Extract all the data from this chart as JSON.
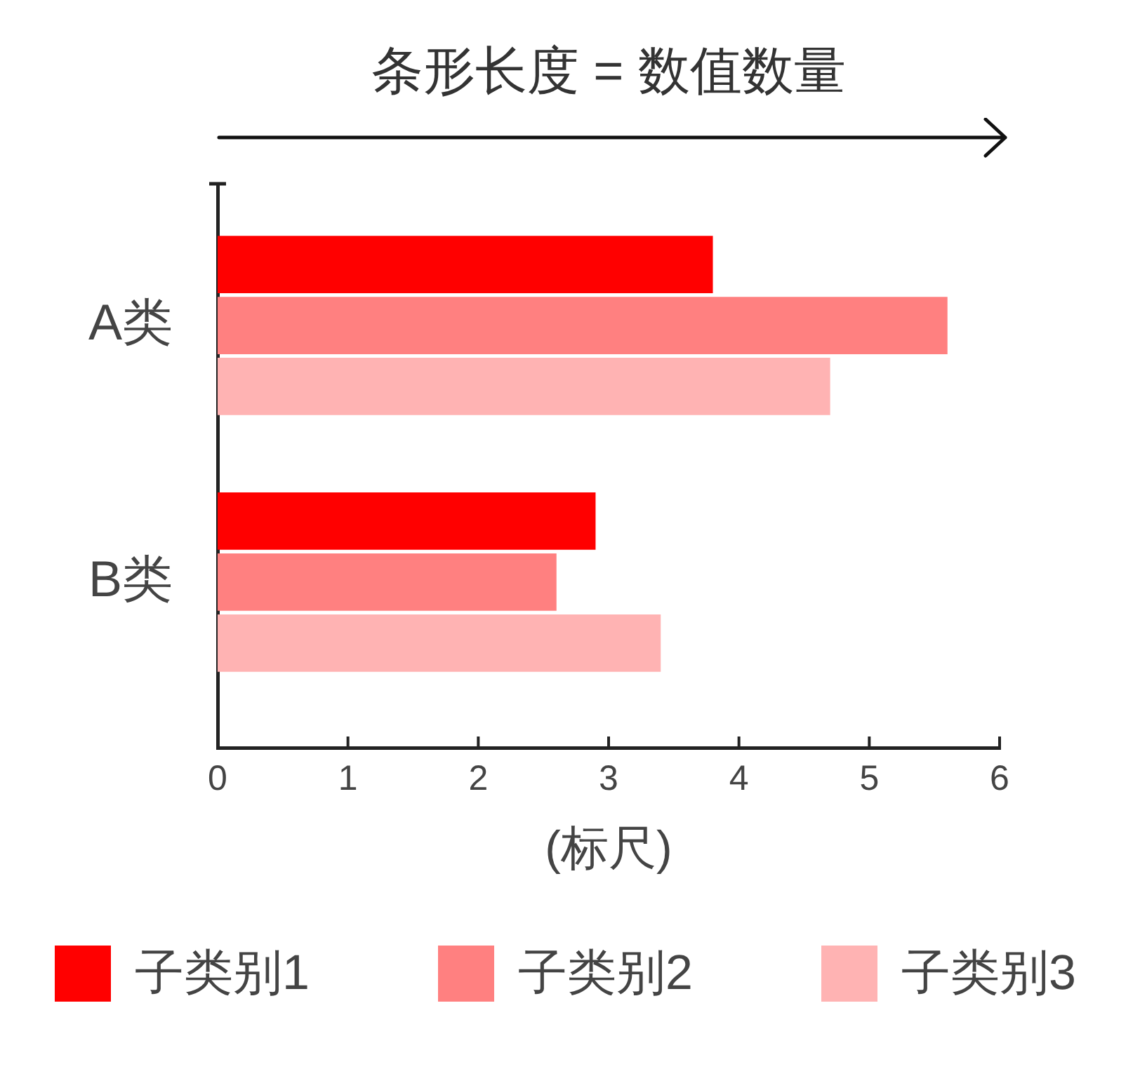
{
  "chart_data": {
    "type": "bar",
    "orientation": "horizontal",
    "title": "条形长度 = 数值数量",
    "xlabel": "(标尺)",
    "categories": [
      "A类",
      "B类"
    ],
    "series": [
      {
        "name": "子类别1",
        "color": "#ff0000",
        "values": [
          3.8,
          2.9
        ]
      },
      {
        "name": "子类别2",
        "color": "#ff8080",
        "values": [
          5.6,
          2.6
        ]
      },
      {
        "name": "子类别3",
        "color": "#ffb3b3",
        "values": [
          4.7,
          3.4
        ]
      }
    ],
    "xlim": [
      0,
      6
    ],
    "xticks": [
      0,
      1,
      2,
      3,
      4,
      5,
      6
    ],
    "grid": false,
    "legend": "bottom"
  }
}
